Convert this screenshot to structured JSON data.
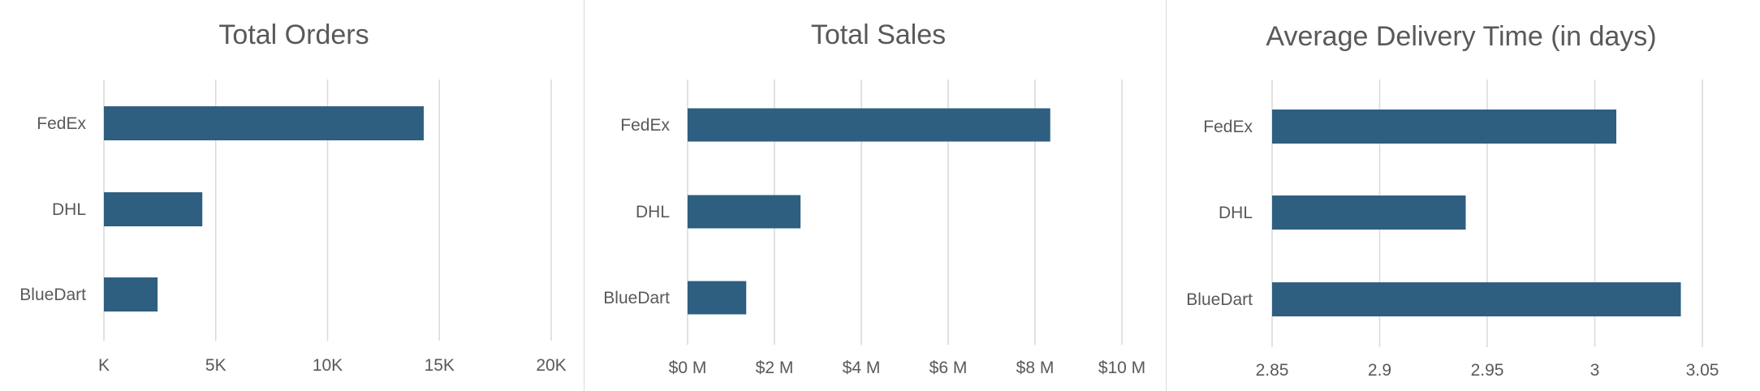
{
  "colors": {
    "bar": "#2e5f80",
    "grid": "#d9d9d9",
    "text": "#595959",
    "background": "#ffffff"
  },
  "chart_data": [
    {
      "type": "bar",
      "orientation": "horizontal",
      "title": "Total Orders",
      "categories": [
        "FedEx",
        "DHL",
        "BlueDart"
      ],
      "values": [
        14300,
        4400,
        2400
      ],
      "xlim": [
        0,
        20000
      ],
      "ticks": [
        0,
        5000,
        10000,
        15000,
        20000
      ],
      "tick_labels": [
        "K",
        "5K",
        "10K",
        "15K",
        "20K"
      ],
      "grid": true,
      "legend": "none"
    },
    {
      "type": "bar",
      "orientation": "horizontal",
      "title": "Total Sales",
      "categories": [
        "FedEx",
        "DHL",
        "BlueDart"
      ],
      "values": [
        8.35,
        2.6,
        1.35
      ],
      "unit": "M",
      "xlim": [
        0,
        10
      ],
      "ticks": [
        0,
        2,
        4,
        6,
        8,
        10
      ],
      "tick_labels": [
        "$0 M",
        "$2 M",
        "$4 M",
        "$6 M",
        "$8 M",
        "$10 M"
      ],
      "grid": true,
      "legend": "none"
    },
    {
      "type": "bar",
      "orientation": "horizontal",
      "title": "Average Delivery Time (in days)",
      "categories": [
        "FedEx",
        "DHL",
        "BlueDart"
      ],
      "values": [
        3.01,
        2.94,
        3.04
      ],
      "xlim": [
        2.85,
        3.05
      ],
      "ticks": [
        2.85,
        2.9,
        2.95,
        3.0,
        3.05
      ],
      "tick_labels": [
        "2.85",
        "2.9",
        "2.95",
        "3",
        "3.05"
      ],
      "grid": true,
      "legend": "none"
    }
  ]
}
